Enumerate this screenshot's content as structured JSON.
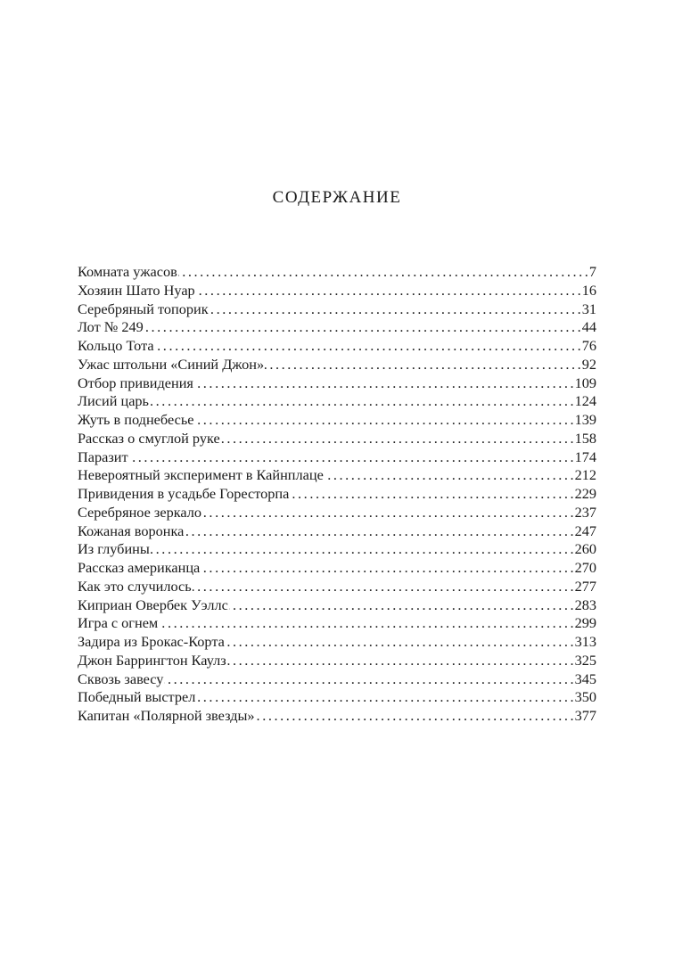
{
  "title": "СОДЕРЖАНИЕ",
  "entries": [
    {
      "title": "Комната ужасов",
      "page": "7"
    },
    {
      "title": "Хозяин Шато Нуар",
      "page": "16"
    },
    {
      "title": "Серебряный топорик",
      "page": "31"
    },
    {
      "title": "Лот № 249",
      "page": "44"
    },
    {
      "title": "Кольцо Тота",
      "page": "76"
    },
    {
      "title": "Ужас штольни «Синий Джон»",
      "page": "92"
    },
    {
      "title": "Отбор привидения",
      "page": "109"
    },
    {
      "title": "Лисий царь",
      "page": "124"
    },
    {
      "title": "Жуть в поднебесье",
      "page": "139"
    },
    {
      "title": "Рассказ о смуглой руке",
      "page": "158"
    },
    {
      "title": "Паразит",
      "page": "174"
    },
    {
      "title": "Невероятный эксперимент в Кайнплаце",
      "page": "212"
    },
    {
      "title": "Привидения в усадьбе Горесторпа",
      "page": "229"
    },
    {
      "title": "Серебряное зеркало",
      "page": "237"
    },
    {
      "title": "Кожаная воронка",
      "page": "247"
    },
    {
      "title": "Из глубины",
      "page": "260"
    },
    {
      "title": "Рассказ американца",
      "page": "270"
    },
    {
      "title": "Как это случилось",
      "page": "277"
    },
    {
      "title": "Киприан Овербек Уэллс",
      "page": "283"
    },
    {
      "title": "Игра с огнем",
      "page": "299"
    },
    {
      "title": "Задира из Брокас-Корта",
      "page": "313"
    },
    {
      "title": "Джон Баррингтон Каулз",
      "page": "325"
    },
    {
      "title": "Сквозь завесу",
      "page": "345"
    },
    {
      "title": "Победный выстрел",
      "page": "350"
    },
    {
      "title": "Капитан «Полярной звезды»",
      "page": "377"
    }
  ]
}
